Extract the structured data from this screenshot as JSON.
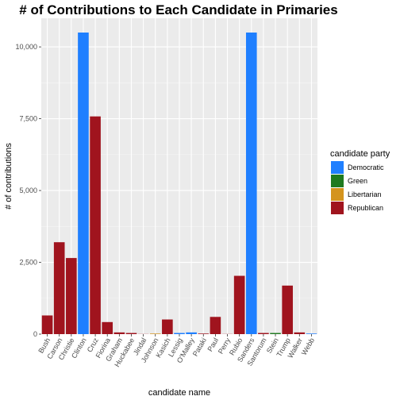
{
  "chart_data": {
    "type": "bar",
    "title": "# of Contributions to Each Candidate in Primaries",
    "xlabel": "candidate name",
    "ylabel": "# of contributions",
    "ylim": [
      0,
      10500
    ],
    "yticks": [
      0,
      2500,
      5000,
      7500,
      10000
    ],
    "ytick_labels": [
      "0",
      "2,500",
      "5,000",
      "7,500",
      "10,000"
    ],
    "grid": true,
    "legend_position": "right",
    "legend": {
      "title": "candidate party",
      "entries": [
        {
          "label": "Democratic",
          "color": "#1f7fff"
        },
        {
          "label": "Green",
          "color": "#1f7a1f"
        },
        {
          "label": "Libertarian",
          "color": "#d4941e"
        },
        {
          "label": "Republican",
          "color": "#a0141e"
        }
      ]
    },
    "categories": [
      "Bush",
      "Carson",
      "Christie",
      "Clinton",
      "Cruz",
      "Fiorina",
      "Graham",
      "Huckabee",
      "Jindal",
      "Johnson",
      "Kasich",
      "Lessig",
      "O'Malley",
      "Pataki",
      "Paul",
      "Perry",
      "Rubio",
      "Sanders",
      "Santorum",
      "Stein",
      "Trump",
      "Walker",
      "Webb"
    ],
    "parties": [
      "Republican",
      "Republican",
      "Republican",
      "Democratic",
      "Republican",
      "Republican",
      "Republican",
      "Republican",
      "Republican",
      "Libertarian",
      "Republican",
      "Democratic",
      "Democratic",
      "Republican",
      "Republican",
      "Republican",
      "Republican",
      "Democratic",
      "Republican",
      "Green",
      "Republican",
      "Republican",
      "Democratic"
    ],
    "values": [
      650,
      3200,
      2650,
      10500,
      7580,
      420,
      60,
      40,
      5,
      20,
      510,
      40,
      60,
      20,
      600,
      5,
      2030,
      10500,
      40,
      40,
      1690,
      60,
      20
    ]
  }
}
